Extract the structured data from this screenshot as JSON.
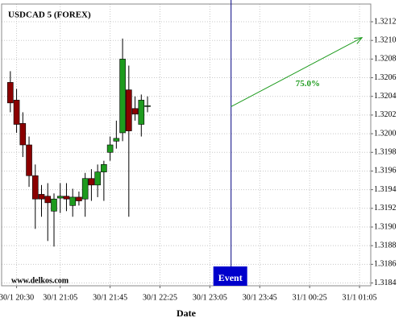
{
  "chart_data": {
    "type": "candlestick",
    "title": "USDCAD 5 (FOREX)",
    "x_label": "Date",
    "watermark": "www.delkos.com",
    "x": [
      "30/1 20:25",
      "30/1 20:30",
      "30/1 20:35",
      "30/1 20:40",
      "30/1 20:45",
      "30/1 20:50",
      "30/1 20:55",
      "30/1 21:00",
      "30/1 21:05",
      "30/1 21:10",
      "30/1 21:15",
      "30/1 21:20",
      "30/1 21:25",
      "30/1 21:30",
      "30/1 21:35",
      "30/1 21:40",
      "30/1 21:45",
      "30/1 21:50",
      "30/1 21:55",
      "30/1 22:00",
      "30/1 22:05",
      "30/1 22:10",
      "30/1 22:15"
    ],
    "open": [
      1.32055,
      1.32036,
      1.32011,
      1.31988,
      1.31955,
      1.31935,
      1.31933,
      1.31917,
      1.31931,
      1.31933,
      1.31923,
      1.31932,
      1.3193,
      1.31952,
      1.31945,
      1.31959,
      1.3198,
      1.31992,
      1.32001,
      1.32047,
      1.32027,
      1.3201,
      1.3203
    ],
    "high": [
      1.32067,
      1.32048,
      1.32023,
      1.31997,
      1.31967,
      1.31945,
      1.31947,
      1.31936,
      1.31947,
      1.31947,
      1.31941,
      1.31938,
      1.31958,
      1.31962,
      1.31967,
      1.31971,
      1.31997,
      1.32014,
      1.32102,
      1.32073,
      1.3204,
      1.32042,
      1.3204
    ],
    "low": [
      1.32023,
      1.32001,
      1.31975,
      1.31943,
      1.31898,
      1.31911,
      1.31885,
      1.31879,
      1.31915,
      1.31917,
      1.31911,
      1.31923,
      1.31911,
      1.31928,
      1.31932,
      1.31928,
      1.31971,
      1.31984,
      1.31992,
      1.31911,
      1.32014,
      1.31997,
      1.32023
    ],
    "close": [
      1.32033,
      1.3201,
      1.31988,
      1.31955,
      1.3193,
      1.3193,
      1.31926,
      1.3193,
      1.31933,
      1.3193,
      1.31932,
      1.31928,
      1.31952,
      1.31945,
      1.31959,
      1.31967,
      1.31988,
      1.31995,
      1.3208,
      1.32003,
      1.32021,
      1.32036,
      1.3203
    ],
    "up_color": "#1e9b1e",
    "down_color": "#8b0000",
    "xlim": [
      "30/1 20:18",
      "31/1 01:14"
    ],
    "xticks": [
      "30/1 20:30",
      "30/1 21:05",
      "30/1 21:45",
      "30/1 22:25",
      "30/1 23:05",
      "30/1 23:45",
      "31/1 00:25",
      "31/1 01:05"
    ],
    "ylim": [
      1.31837,
      1.32139
    ],
    "yticks": [
      1.3184,
      1.3186,
      1.3188,
      {
        "value": 1.319,
        "label": "1.3190"
      },
      1.3192,
      1.3194,
      1.3196,
      1.3198,
      {
        "value": 1.32,
        "label": "1.3200"
      },
      1.3202,
      1.3204,
      1.3206,
      1.3208,
      {
        "value": 1.321,
        "label": "1.3210"
      },
      1.3212
    ],
    "grid": true,
    "event": {
      "label": "Event",
      "x": "30/1 23:22",
      "color": "#0000cc"
    },
    "projection": {
      "label": "75.0%",
      "x": [
        "30/1 23:22",
        "31/1 01:07"
      ],
      "y": [
        1.32029,
        1.32103
      ],
      "color": "#1e9b1e"
    }
  }
}
